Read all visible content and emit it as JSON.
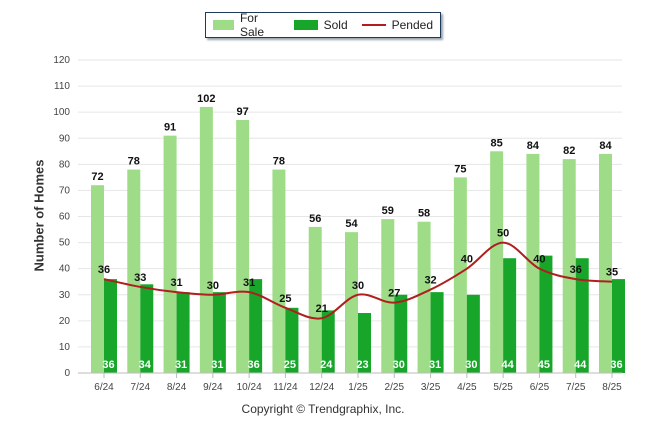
{
  "legend": {
    "for_sale": "For Sale",
    "sold": "Sold",
    "pended": "Pended"
  },
  "footer": {
    "copyright": "Copyright © Trendgraphix, Inc."
  },
  "colors": {
    "for_sale": "#9fdc88",
    "sold": "#17a52a",
    "pended": "#b01e1e",
    "grid": "#e6e6e6",
    "axis": "#bbbbbb"
  },
  "chart_data": {
    "type": "bar",
    "ylabel": "Number of Homes",
    "xlabel": "",
    "ylim": [
      0,
      120
    ],
    "yticks": [
      0,
      10,
      20,
      30,
      40,
      50,
      60,
      70,
      80,
      90,
      100,
      110,
      120
    ],
    "categories": [
      "6/24",
      "7/24",
      "8/24",
      "9/24",
      "10/24",
      "11/24",
      "12/24",
      "1/25",
      "2/25",
      "3/25",
      "4/25",
      "5/25",
      "6/25",
      "7/25",
      "8/25"
    ],
    "series": [
      {
        "name": "For Sale",
        "type": "bar",
        "values": [
          72,
          78,
          91,
          102,
          97,
          78,
          56,
          54,
          59,
          58,
          75,
          85,
          84,
          82,
          84
        ]
      },
      {
        "name": "Sold",
        "type": "bar",
        "values": [
          36,
          34,
          31,
          31,
          36,
          25,
          24,
          23,
          30,
          31,
          30,
          44,
          45,
          44,
          36
        ]
      },
      {
        "name": "Pended",
        "type": "line",
        "values": [
          36,
          33,
          31,
          30,
          31,
          25,
          21,
          30,
          27,
          32,
          40,
          50,
          40,
          36,
          35
        ]
      }
    ],
    "legend_position": "top-center",
    "grid": true
  }
}
